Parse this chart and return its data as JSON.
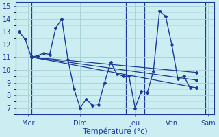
{
  "xlabel": "Température (°c)",
  "background_color": "#cceef2",
  "line_color": "#1a3a9c",
  "grid_color": "#aad4d8",
  "ylim": [
    6.5,
    15.3
  ],
  "yticks": [
    7,
    8,
    9,
    10,
    11,
    12,
    13,
    14,
    15
  ],
  "series_main": {
    "x": [
      0,
      1,
      2,
      3,
      4,
      5,
      6,
      7,
      8,
      9,
      10,
      11,
      12,
      13,
      14,
      15,
      16,
      17,
      18,
      19,
      20,
      21,
      22,
      23,
      24,
      25,
      26,
      27,
      28,
      29
    ],
    "y": [
      13.0,
      12.4,
      11.0,
      11.1,
      11.3,
      11.2,
      13.3,
      14.0,
      10.8,
      8.5,
      7.0,
      7.7,
      7.2,
      7.25,
      9.0,
      10.6,
      9.7,
      9.5,
      9.5,
      7.0,
      8.3,
      8.2,
      9.9,
      14.6,
      14.2,
      12.0,
      9.3,
      9.5,
      8.6,
      8.6
    ]
  },
  "series_trends": [
    {
      "x": [
        2,
        29
      ],
      "y": [
        11.0,
        8.6
      ]
    },
    {
      "x": [
        2,
        29
      ],
      "y": [
        11.0,
        9.2
      ]
    },
    {
      "x": [
        2,
        29
      ],
      "y": [
        11.0,
        9.8
      ]
    }
  ],
  "vlines": [
    2,
    17.5,
    20.5,
    30.5
  ],
  "xtick_positions": [
    1.5,
    10,
    19,
    25,
    31
  ],
  "xtick_labels": [
    "Mer",
    "Dim",
    "Jeu",
    "Ven",
    "Sam"
  ],
  "xlim": [
    -0.5,
    32
  ]
}
